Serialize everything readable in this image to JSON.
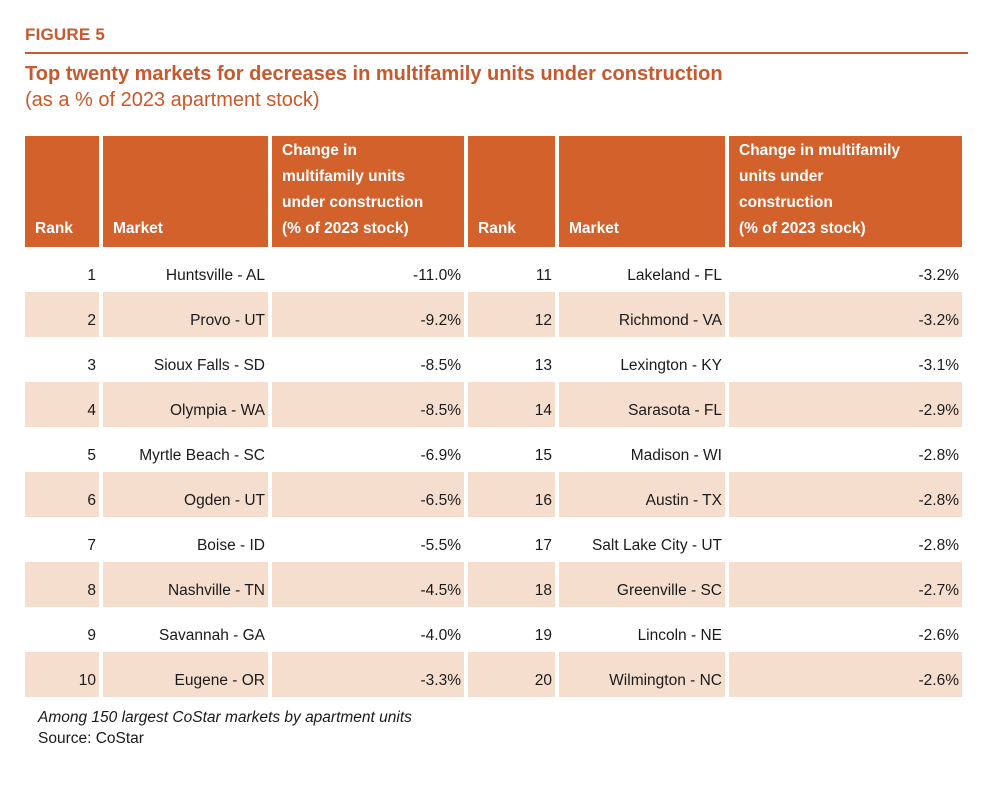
{
  "page": {
    "figure_label": "FIGURE 5",
    "title": "Top twenty markets for decreases in multifamily units under construction",
    "subtitle": "(as a % of 2023 apartment stock)",
    "footnote": "Among 150 largest CoStar markets by apartment units",
    "source": "Source: CoStar"
  },
  "colors": {
    "accent": "#C9582B",
    "table_header_bg": "#D2612C",
    "row_alt_bg": "#F6DECF",
    "body_text": "#1A1A1A"
  },
  "table": {
    "header": {
      "rank_left": "Rank",
      "market_left": "Market",
      "change_left": "Change in\nmultifamily units\nunder construction\n(% of 2023 stock)",
      "rank_right": "Rank",
      "market_right": "Market",
      "change_right": "Change in multifamily\nunits under\nconstruction\n(% of 2023 stock)"
    },
    "rows": [
      {
        "rank_left": "1",
        "market_left": "Huntsville - AL",
        "change_left": "-11.0%",
        "rank_right": "11",
        "market_right": "Lakeland - FL",
        "change_right": "-3.2%"
      },
      {
        "rank_left": "2",
        "market_left": "Provo - UT",
        "change_left": "-9.2%",
        "rank_right": "12",
        "market_right": "Richmond - VA",
        "change_right": "-3.2%"
      },
      {
        "rank_left": "3",
        "market_left": "Sioux Falls - SD",
        "change_left": "-8.5%",
        "rank_right": "13",
        "market_right": "Lexington - KY",
        "change_right": "-3.1%"
      },
      {
        "rank_left": "4",
        "market_left": "Olympia - WA",
        "change_left": "-8.5%",
        "rank_right": "14",
        "market_right": "Sarasota - FL",
        "change_right": "-2.9%"
      },
      {
        "rank_left": "5",
        "market_left": "Myrtle Beach - SC",
        "change_left": "-6.9%",
        "rank_right": "15",
        "market_right": "Madison - WI",
        "change_right": "-2.8%"
      },
      {
        "rank_left": "6",
        "market_left": "Ogden - UT",
        "change_left": "-6.5%",
        "rank_right": "16",
        "market_right": "Austin - TX",
        "change_right": "-2.8%"
      },
      {
        "rank_left": "7",
        "market_left": "Boise - ID",
        "change_left": "-5.5%",
        "rank_right": "17",
        "market_right": "Salt Lake City - UT",
        "change_right": "-2.8%"
      },
      {
        "rank_left": "8",
        "market_left": "Nashville - TN",
        "change_left": "-4.5%",
        "rank_right": "18",
        "market_right": "Greenville - SC",
        "change_right": "-2.7%"
      },
      {
        "rank_left": "9",
        "market_left": "Savannah - GA",
        "change_left": "-4.0%",
        "rank_right": "19",
        "market_right": "Lincoln - NE",
        "change_right": "-2.6%"
      },
      {
        "rank_left": "10",
        "market_left": "Eugene - OR",
        "change_left": "-3.3%",
        "rank_right": "20",
        "market_right": "Wilmington - NC",
        "change_right": "-2.6%"
      }
    ]
  }
}
